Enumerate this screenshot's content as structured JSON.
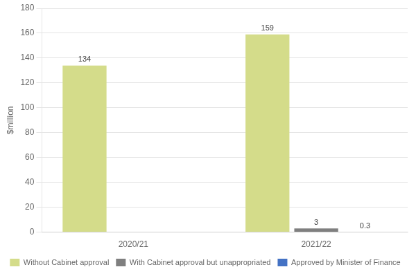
{
  "chart_data": {
    "type": "bar",
    "categories": [
      "2020/21",
      "2021/22"
    ],
    "series": [
      {
        "name": "Without Cabinet approval",
        "color": "#d4dc8a",
        "values": [
          134,
          159
        ]
      },
      {
        "name": "With Cabinet approval but unappropriated",
        "color": "#7f7f7f",
        "values": [
          0,
          3
        ],
        "value_labels": [
          null,
          "3"
        ]
      },
      {
        "name": "Approved by Minister of Finance",
        "color": "#4472c4",
        "values": [
          0,
          0.3
        ],
        "value_labels": [
          null,
          "0.3"
        ]
      }
    ],
    "ylabel": "$million",
    "ylim": [
      0,
      180
    ],
    "yticks": [
      0,
      20,
      40,
      60,
      80,
      100,
      120,
      140,
      160,
      180
    ],
    "grid": true,
    "data_labels": true,
    "legend": "bottom"
  }
}
